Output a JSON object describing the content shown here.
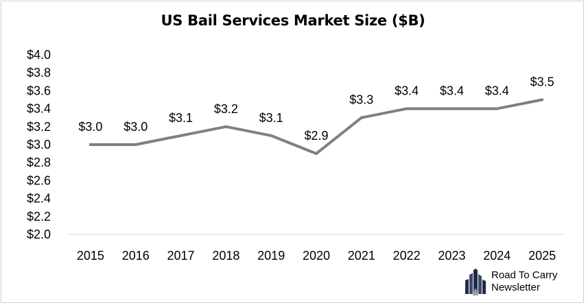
{
  "chart_data": {
    "type": "line",
    "title": "US Bail Services Market Size ($B)",
    "xlabel": "",
    "ylabel": "",
    "categories": [
      "2015",
      "2016",
      "2017",
      "2018",
      "2019",
      "2020",
      "2021",
      "2022",
      "2023",
      "2024",
      "2025"
    ],
    "series": [
      {
        "name": "Market Size",
        "values": [
          3.0,
          3.0,
          3.1,
          3.2,
          3.1,
          2.9,
          3.3,
          3.4,
          3.4,
          3.4,
          3.5
        ],
        "labels": [
          "$3.0",
          "$3.0",
          "$3.1",
          "$3.2",
          "$3.1",
          "$2.9",
          "$3.3",
          "$3.4",
          "$3.4",
          "$3.4",
          "$3.5"
        ]
      }
    ],
    "ylim": [
      2.0,
      4.0
    ],
    "ytick_values": [
      2.0,
      2.2,
      2.4,
      2.6,
      2.8,
      3.0,
      3.2,
      3.4,
      3.6,
      3.8,
      4.0
    ],
    "ytick_labels": [
      "$2.0",
      "$2.2",
      "$2.4",
      "$2.6",
      "$2.8",
      "$3.0",
      "$3.2",
      "$3.4",
      "$3.6",
      "$3.8",
      "$4.0"
    ],
    "grid": false,
    "legend": "none",
    "line_color": "#7f7f7f",
    "axis_color": "#d9d9d9"
  },
  "branding": {
    "line1": "Road To Carry",
    "line2": "Newsletter",
    "icon": "city-skyline-icon"
  }
}
